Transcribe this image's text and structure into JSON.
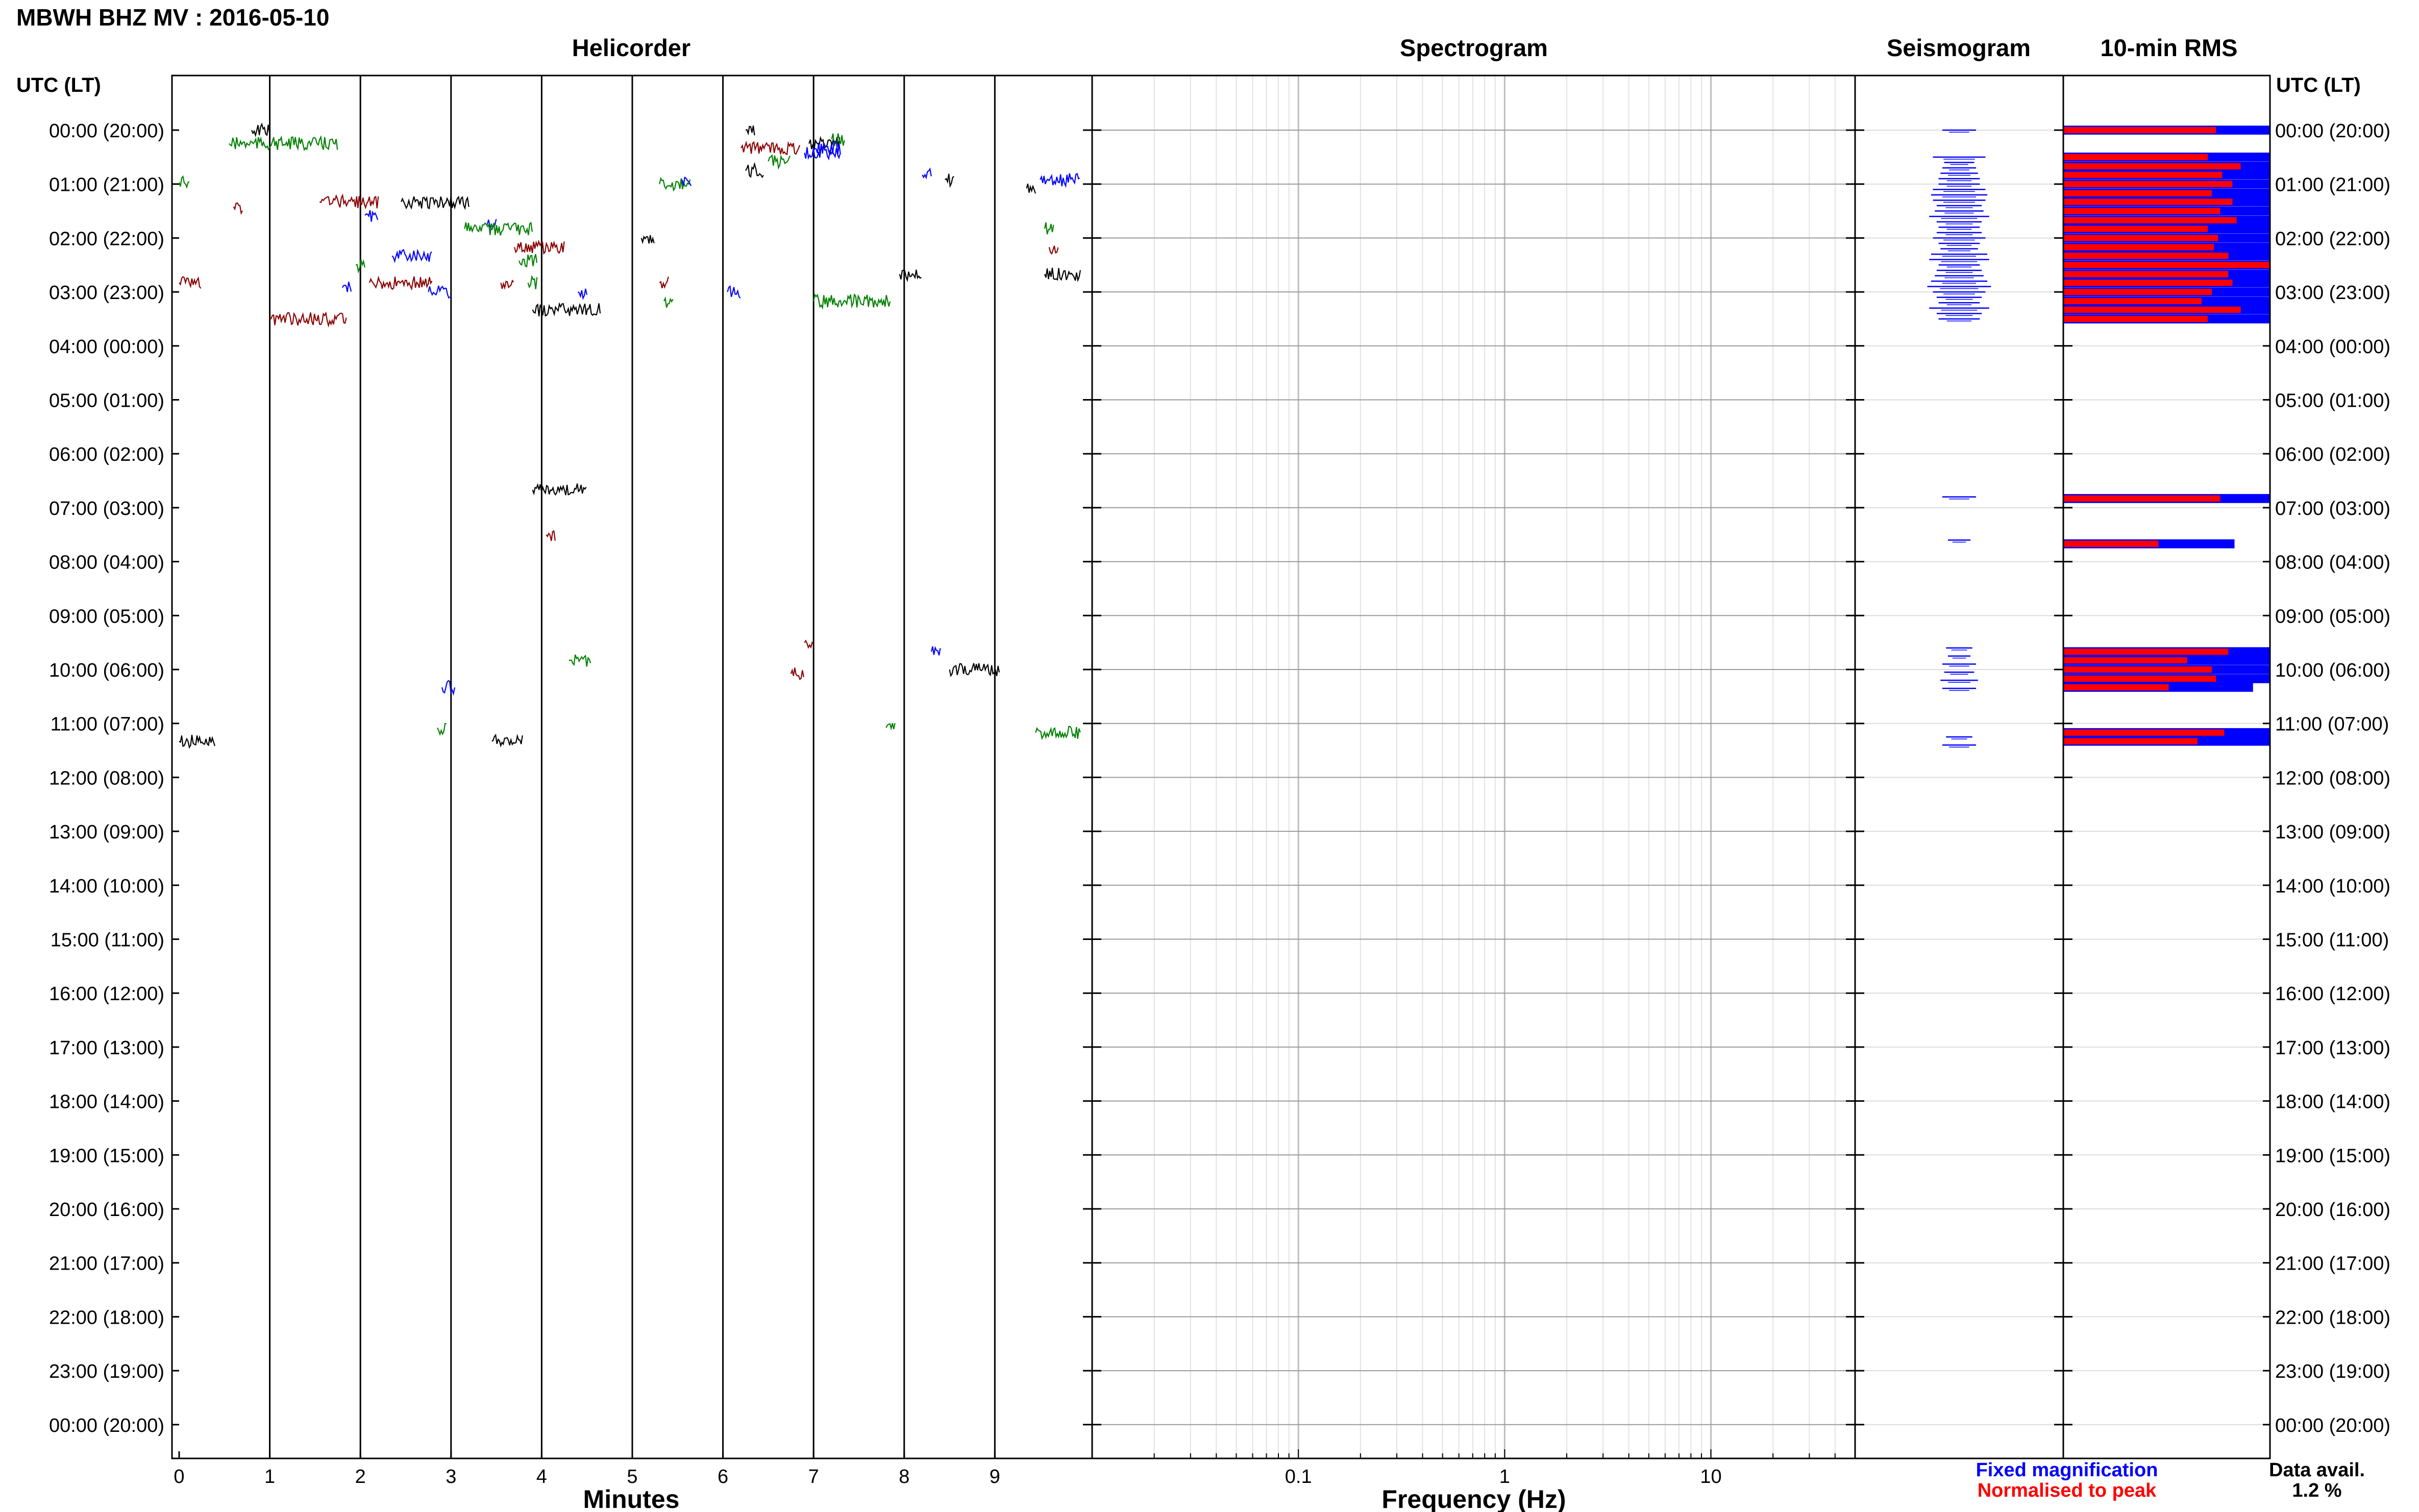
{
  "header": {
    "title": "MBWH BHZ MV : 2016-05-10",
    "time_axis_label": "UTC (LT)"
  },
  "panels": {
    "helicorder": "Helicorder",
    "spectrogram": "Spectrogram",
    "seismogram": "Seismogram",
    "rms": "10-min RMS"
  },
  "rows": [
    "00:00 (20:00)",
    "01:00 (21:00)",
    "02:00 (22:00)",
    "03:00 (23:00)",
    "04:00 (00:00)",
    "05:00 (01:00)",
    "06:00 (02:00)",
    "07:00 (03:00)",
    "08:00 (04:00)",
    "09:00 (05:00)",
    "10:00 (06:00)",
    "11:00 (07:00)",
    "12:00 (08:00)",
    "13:00 (09:00)",
    "14:00 (10:00)",
    "15:00 (11:00)",
    "16:00 (12:00)",
    "17:00 (13:00)",
    "18:00 (14:00)",
    "19:00 (15:00)",
    "20:00 (16:00)",
    "21:00 (17:00)",
    "22:00 (18:00)",
    "23:00 (19:00)",
    "00:00 (20:00)"
  ],
  "legend": {
    "fixed": "Fixed magnification",
    "normalised": "Normalised to peak",
    "fixed_color": "#0000ff",
    "normalised_color": "#ff0000"
  },
  "availability": {
    "label": "Data avail.",
    "value": "1.2 %"
  },
  "chart_data": [
    {
      "type": "line",
      "title": "Helicorder",
      "xlabel": "Minutes",
      "xlim": [
        0,
        10
      ],
      "x_ticks": [
        "0",
        "1",
        "2",
        "3",
        "4",
        "5",
        "6",
        "7",
        "8",
        "9"
      ],
      "ylabel": "UTC (LT)",
      "trace_colors": [
        "#000000",
        "#008000",
        "#0000ff",
        "#8b0000"
      ],
      "segments": [
        {
          "hour": 0.0,
          "start": 0.8,
          "end": 1.0,
          "color": "#000000"
        },
        {
          "hour": 0.25,
          "start": 0.55,
          "end": 1.75,
          "color": "#008000"
        },
        {
          "hour": 0.0,
          "start": 6.25,
          "end": 6.35,
          "color": "#000000"
        },
        {
          "hour": 0.33,
          "start": 6.2,
          "end": 6.85,
          "color": "#8b0000"
        },
        {
          "hour": 0.25,
          "start": 6.95,
          "end": 7.3,
          "color": "#000000"
        },
        {
          "hour": 0.17,
          "start": 7.2,
          "end": 7.35,
          "color": "#008000"
        },
        {
          "hour": 0.42,
          "start": 6.9,
          "end": 7.3,
          "color": "#0000ff"
        },
        {
          "hour": 0.97,
          "start": 0.0,
          "end": 0.12,
          "color": "#008000"
        },
        {
          "hour": 1.42,
          "start": 0.6,
          "end": 0.7,
          "color": "#8b0000"
        },
        {
          "hour": 1.33,
          "start": 1.55,
          "end": 2.2,
          "color": "#8b0000"
        },
        {
          "hour": 1.58,
          "start": 2.05,
          "end": 2.2,
          "color": "#0000ff"
        },
        {
          "hour": 1.33,
          "start": 2.45,
          "end": 3.2,
          "color": "#000000"
        },
        {
          "hour": 1.75,
          "start": 3.4,
          "end": 3.5,
          "color": "#0000ff"
        },
        {
          "hour": 1.83,
          "start": 3.15,
          "end": 3.9,
          "color": "#008000"
        },
        {
          "hour": 2.17,
          "start": 3.7,
          "end": 4.25,
          "color": "#8b0000"
        },
        {
          "hour": 2.42,
          "start": 3.75,
          "end": 3.95,
          "color": "#008000"
        },
        {
          "hour": 2.33,
          "start": 2.35,
          "end": 2.8,
          "color": "#0000ff"
        },
        {
          "hour": 2.5,
          "start": 1.95,
          "end": 2.05,
          "color": "#008000"
        },
        {
          "hour": 0.75,
          "start": 6.25,
          "end": 6.45,
          "color": "#000000"
        },
        {
          "hour": 0.58,
          "start": 6.5,
          "end": 6.75,
          "color": "#008000"
        },
        {
          "hour": 1.0,
          "start": 5.3,
          "end": 5.65,
          "color": "#008000"
        },
        {
          "hour": 0.92,
          "start": 5.55,
          "end": 5.65,
          "color": "#0000ff"
        },
        {
          "hour": 2.0,
          "start": 5.1,
          "end": 5.25,
          "color": "#000000"
        },
        {
          "hour": 0.83,
          "start": 8.2,
          "end": 8.3,
          "color": "#0000ff"
        },
        {
          "hour": 0.33,
          "start": 7.0,
          "end": 7.3,
          "color": "#0000ff"
        },
        {
          "hour": 0.92,
          "start": 8.45,
          "end": 8.55,
          "color": "#000000"
        },
        {
          "hour": 0.92,
          "start": 9.5,
          "end": 9.95,
          "color": "#0000ff"
        },
        {
          "hour": 1.08,
          "start": 9.35,
          "end": 9.45,
          "color": "#000000"
        },
        {
          "hour": 1.83,
          "start": 9.55,
          "end": 9.65,
          "color": "#008000"
        },
        {
          "hour": 2.17,
          "start": 9.6,
          "end": 9.7,
          "color": "#8b0000"
        },
        {
          "hour": 2.67,
          "start": 9.55,
          "end": 9.95,
          "color": "#000000"
        },
        {
          "hour": 2.83,
          "start": 0.0,
          "end": 0.25,
          "color": "#8b0000"
        },
        {
          "hour": 3.5,
          "start": 1.0,
          "end": 1.85,
          "color": "#8b0000"
        },
        {
          "hour": 2.92,
          "start": 1.8,
          "end": 1.9,
          "color": "#0000ff"
        },
        {
          "hour": 2.83,
          "start": 2.1,
          "end": 2.8,
          "color": "#8b0000"
        },
        {
          "hour": 3.0,
          "start": 2.75,
          "end": 3.0,
          "color": "#0000ff"
        },
        {
          "hour": 2.83,
          "start": 3.55,
          "end": 3.7,
          "color": "#8b0000"
        },
        {
          "hour": 2.83,
          "start": 3.85,
          "end": 3.95,
          "color": "#008000"
        },
        {
          "hour": 3.33,
          "start": 3.9,
          "end": 4.65,
          "color": "#000000"
        },
        {
          "hour": 3.0,
          "start": 4.4,
          "end": 4.5,
          "color": "#0000ff"
        },
        {
          "hour": 2.83,
          "start": 5.3,
          "end": 5.4,
          "color": "#8b0000"
        },
        {
          "hour": 3.17,
          "start": 5.35,
          "end": 5.45,
          "color": "#008000"
        },
        {
          "hour": 3.0,
          "start": 6.05,
          "end": 6.2,
          "color": "#0000ff"
        },
        {
          "hour": 3.17,
          "start": 7.0,
          "end": 7.85,
          "color": "#008000"
        },
        {
          "hour": 2.67,
          "start": 7.95,
          "end": 8.2,
          "color": "#000000"
        },
        {
          "hour": 6.67,
          "start": 3.9,
          "end": 4.5,
          "color": "#000000"
        },
        {
          "hour": 7.5,
          "start": 4.05,
          "end": 4.15,
          "color": "#8b0000"
        },
        {
          "hour": 9.83,
          "start": 4.3,
          "end": 4.55,
          "color": "#008000"
        },
        {
          "hour": 9.5,
          "start": 6.9,
          "end": 7.0,
          "color": "#8b0000"
        },
        {
          "hour": 10.08,
          "start": 6.75,
          "end": 6.9,
          "color": "#8b0000"
        },
        {
          "hour": 9.67,
          "start": 8.3,
          "end": 8.4,
          "color": "#0000ff"
        },
        {
          "hour": 10.0,
          "start": 8.5,
          "end": 9.05,
          "color": "#000000"
        },
        {
          "hour": 10.33,
          "start": 2.9,
          "end": 3.05,
          "color": "#0000ff"
        },
        {
          "hour": 11.08,
          "start": 2.85,
          "end": 2.95,
          "color": "#008000"
        },
        {
          "hour": 11.33,
          "start": 0.0,
          "end": 0.4,
          "color": "#000000"
        },
        {
          "hour": 11.33,
          "start": 3.45,
          "end": 3.8,
          "color": "#000000"
        },
        {
          "hour": 11.08,
          "start": 7.8,
          "end": 7.9,
          "color": "#008000"
        },
        {
          "hour": 11.17,
          "start": 9.45,
          "end": 9.95,
          "color": "#008000"
        }
      ]
    },
    {
      "type": "heatmap",
      "title": "Spectrogram",
      "xlabel": "Frequency (Hz)",
      "x_scale": "log",
      "xlim": [
        0.01,
        50
      ],
      "x_ticks": [
        "0.1",
        "1",
        "10"
      ]
    },
    {
      "type": "bar",
      "title": "Seismogram",
      "color": "#0000ff",
      "hours": [
        0.0,
        0.5,
        0.6,
        0.7,
        0.8,
        0.9,
        1.0,
        1.1,
        1.2,
        1.3,
        1.4,
        1.5,
        1.6,
        1.7,
        1.8,
        1.9,
        2.0,
        2.1,
        2.2,
        2.3,
        2.4,
        2.5,
        2.6,
        2.7,
        2.8,
        2.9,
        3.0,
        3.1,
        3.2,
        3.3,
        3.4,
        3.5,
        6.8,
        7.6,
        9.6,
        9.75,
        9.9,
        10.05,
        10.2,
        10.35,
        11.25,
        11.4
      ],
      "relative_widths": [
        0.45,
        0.7,
        0.4,
        0.45,
        0.5,
        0.55,
        0.55,
        0.7,
        0.75,
        0.7,
        0.6,
        0.65,
        0.8,
        0.6,
        0.55,
        0.6,
        0.7,
        0.55,
        0.5,
        0.75,
        0.8,
        0.55,
        0.6,
        0.65,
        0.75,
        0.85,
        0.7,
        0.6,
        0.55,
        0.8,
        0.6,
        0.55,
        0.45,
        0.3,
        0.35,
        0.3,
        0.45,
        0.4,
        0.5,
        0.45,
        0.35,
        0.45
      ]
    },
    {
      "type": "bar",
      "title": "10-min RMS",
      "series": [
        {
          "name": "Fixed magnification",
          "color": "#0000ff"
        },
        {
          "name": "Normalised to peak",
          "color": "#ff0000"
        }
      ],
      "xlim": [
        0,
        1
      ],
      "bars": [
        {
          "hour": 0.0,
          "fixed": 1.0,
          "normalised": 0.74
        },
        {
          "hour": 0.5,
          "fixed": 1.0,
          "normalised": 0.7
        },
        {
          "hour": 0.67,
          "fixed": 1.0,
          "normalised": 0.86
        },
        {
          "hour": 0.83,
          "fixed": 1.0,
          "normalised": 0.77
        },
        {
          "hour": 1.0,
          "fixed": 1.0,
          "normalised": 0.82
        },
        {
          "hour": 1.17,
          "fixed": 1.0,
          "normalised": 0.72
        },
        {
          "hour": 1.33,
          "fixed": 1.0,
          "normalised": 0.82
        },
        {
          "hour": 1.5,
          "fixed": 1.0,
          "normalised": 0.76
        },
        {
          "hour": 1.67,
          "fixed": 1.0,
          "normalised": 0.84
        },
        {
          "hour": 1.83,
          "fixed": 1.0,
          "normalised": 0.7
        },
        {
          "hour": 2.0,
          "fixed": 1.0,
          "normalised": 0.75
        },
        {
          "hour": 2.17,
          "fixed": 1.0,
          "normalised": 0.73
        },
        {
          "hour": 2.33,
          "fixed": 1.0,
          "normalised": 0.8
        },
        {
          "hour": 2.5,
          "fixed": 1.0,
          "normalised": 1.0
        },
        {
          "hour": 2.67,
          "fixed": 1.0,
          "normalised": 0.8
        },
        {
          "hour": 2.83,
          "fixed": 1.0,
          "normalised": 0.82
        },
        {
          "hour": 3.0,
          "fixed": 1.0,
          "normalised": 0.72
        },
        {
          "hour": 3.17,
          "fixed": 1.0,
          "normalised": 0.67
        },
        {
          "hour": 3.33,
          "fixed": 1.0,
          "normalised": 0.86
        },
        {
          "hour": 3.5,
          "fixed": 1.0,
          "normalised": 0.7
        },
        {
          "hour": 6.83,
          "fixed": 1.0,
          "normalised": 0.76
        },
        {
          "hour": 7.67,
          "fixed": 0.83,
          "normalised": 0.46
        },
        {
          "hour": 9.67,
          "fixed": 1.0,
          "normalised": 0.8
        },
        {
          "hour": 9.83,
          "fixed": 1.0,
          "normalised": 0.6
        },
        {
          "hour": 10.0,
          "fixed": 1.0,
          "normalised": 0.72
        },
        {
          "hour": 10.17,
          "fixed": 1.0,
          "normalised": 0.74
        },
        {
          "hour": 10.33,
          "fixed": 0.92,
          "normalised": 0.51
        },
        {
          "hour": 11.17,
          "fixed": 1.0,
          "normalised": 0.78
        },
        {
          "hour": 11.33,
          "fixed": 1.0,
          "normalised": 0.65
        }
      ]
    }
  ]
}
